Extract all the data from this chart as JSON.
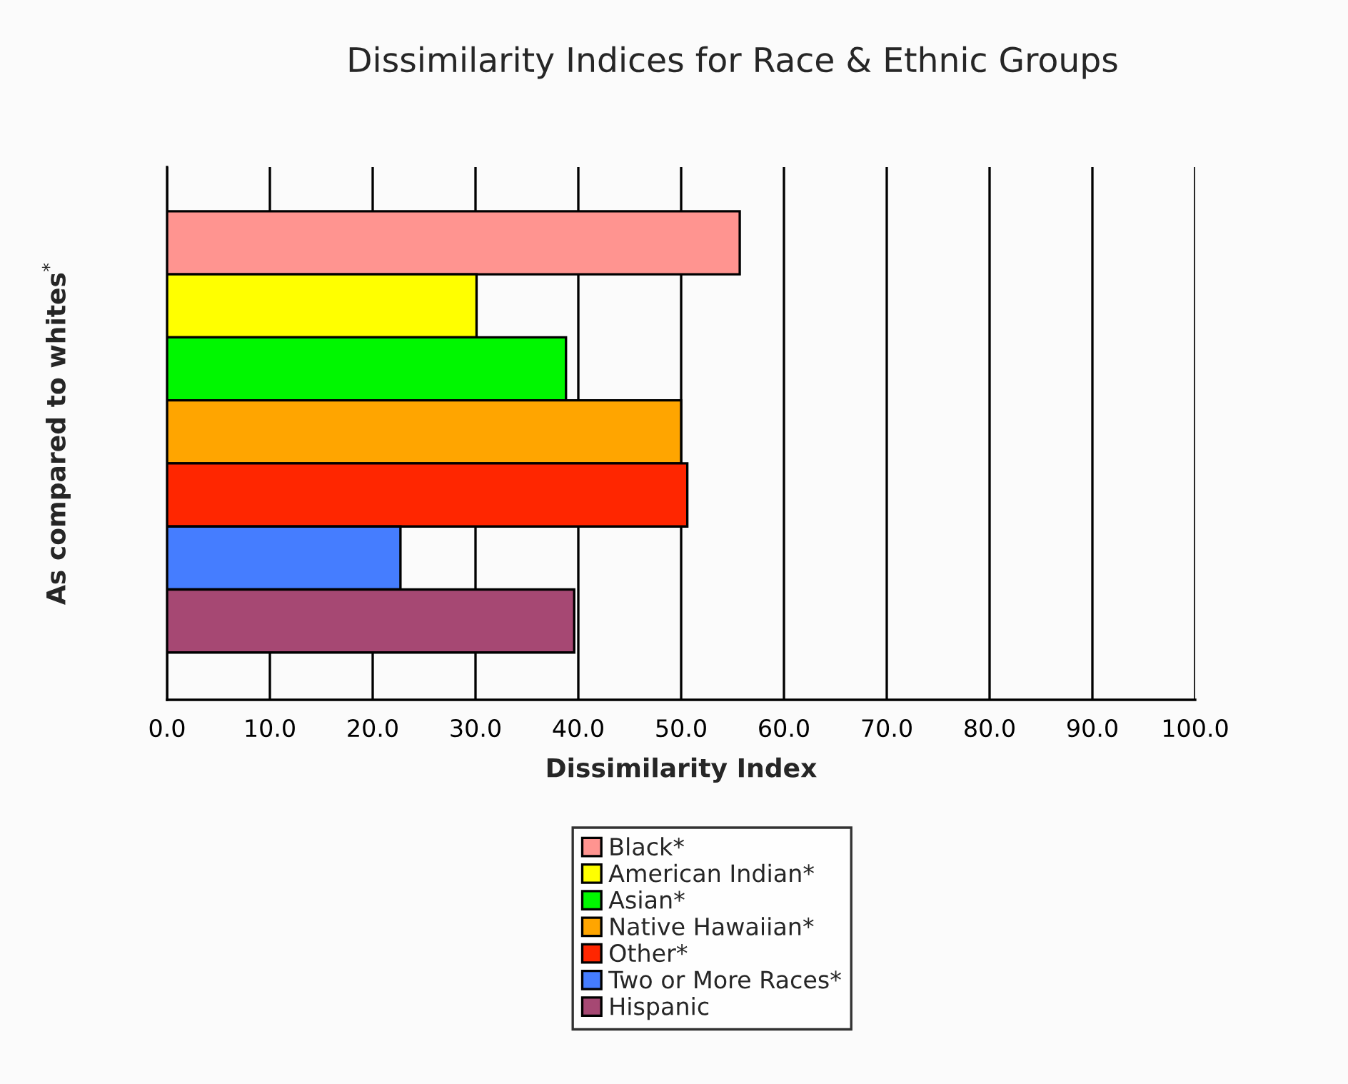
{
  "chart_data": {
    "type": "bar",
    "orientation": "horizontal",
    "title": "Dissimilarity Indices for Race & Ethnic Groups",
    "xlabel": "Dissimilarity Index",
    "ylabel": "As compared to whites$^{*}$",
    "categories": [
      null
    ],
    "series": [
      {
        "name": "Black*",
        "color": "#ff9490",
        "values": [
          55.7
        ]
      },
      {
        "name": "American Indian*",
        "color": "#ffff00",
        "values": [
          30.1
        ]
      },
      {
        "name": "Asian*",
        "color": "#00f700",
        "values": [
          38.8
        ]
      },
      {
        "name": "Native Hawaiian*",
        "color": "#ffa500",
        "values": [
          50.0
        ]
      },
      {
        "name": "Other*",
        "color": "#ff2600",
        "values": [
          50.6
        ]
      },
      {
        "name": "Two or More Races*",
        "color": "#457dff",
        "values": [
          22.7
        ]
      },
      {
        "name": "Hispanic",
        "color": "#a64873",
        "values": [
          39.6
        ]
      }
    ],
    "xlim": [
      0,
      100
    ],
    "xticks": [
      {
        "value": 0,
        "label": "0.0"
      },
      {
        "value": 10,
        "label": "10.0"
      },
      {
        "value": 20,
        "label": "20.0"
      },
      {
        "value": 30,
        "label": "30.0"
      },
      {
        "value": 40,
        "label": "40.0"
      },
      {
        "value": 50,
        "label": "50.0"
      },
      {
        "value": 60,
        "label": "60.0"
      },
      {
        "value": 70,
        "label": "70.0"
      },
      {
        "value": 80,
        "label": "80.0"
      },
      {
        "value": 90,
        "label": "90.0"
      },
      {
        "value": 100,
        "label": "100.0"
      }
    ],
    "grid": "x",
    "legend": "bottom"
  }
}
